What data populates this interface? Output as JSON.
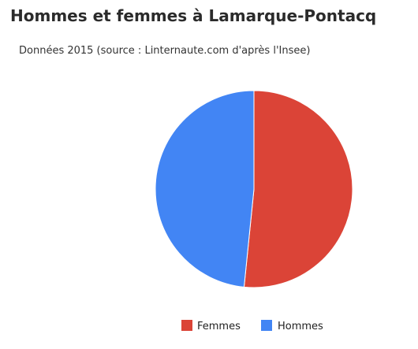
{
  "page": {
    "title": "Hommes et femmes à Lamarque-Pontacq",
    "subtitle": "Données 2015 (source : Linternaute.com d'après l'Insee)"
  },
  "chart_data": {
    "type": "pie",
    "title": "Hommes et femmes à Lamarque-Pontacq",
    "subtitle": "Données 2015 (source : Linternaute.com d'après l'Insee)",
    "categories": [
      "Femmes",
      "Hommes"
    ],
    "values": [
      51.6,
      48.4
    ],
    "colors": [
      "#db4437",
      "#4285f4"
    ],
    "legend_position": "bottom"
  }
}
